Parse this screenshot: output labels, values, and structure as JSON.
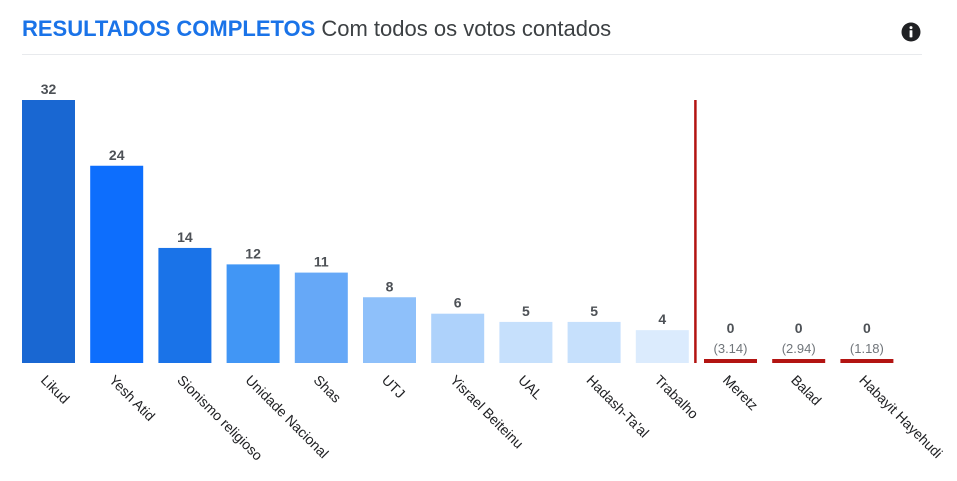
{
  "header": {
    "title": "RESULTADOS COMPLETOS",
    "subtitle": "Com todos os votos contados"
  },
  "icons": {
    "info": "info-icon"
  },
  "colors": {
    "title": "#1a73e8",
    "threshold_line": "#b31412",
    "below_threshold_bar": "#b31412"
  },
  "chart_data": {
    "type": "bar",
    "categories": [
      "Likud",
      "Yesh Atid",
      "Sionismo religioso",
      "Unidade Nacional",
      "Shas",
      "UTJ",
      "Yisrael Beiteinu",
      "UAL",
      "Hadash-Ta'al",
      "Trabalho",
      "Meretz",
      "Balad",
      "Habayit Hayehudi"
    ],
    "values": [
      32,
      24,
      14,
      12,
      11,
      8,
      6,
      5,
      5,
      4,
      0,
      0,
      0
    ],
    "value_labels": [
      "32",
      "24",
      "14",
      "12",
      "11",
      "8",
      "6",
      "5",
      "5",
      "4",
      "0",
      "0",
      "0"
    ],
    "secondary_labels": [
      "",
      "",
      "",
      "",
      "",
      "",
      "",
      "",
      "",
      "",
      "(3.14)",
      "(2.94)",
      "(1.18)"
    ],
    "bar_colors": [
      "#1967d2",
      "#0d6efd",
      "#1a73e8",
      "#4196f5",
      "#66a8f7",
      "#8ec0fa",
      "#aed2fb",
      "#c6e0fc",
      "#c6e0fc",
      "#dbebfd",
      "#b31412",
      "#b31412",
      "#b31412"
    ],
    "threshold_after_index": 9,
    "ylim": [
      0,
      32
    ],
    "title": "",
    "xlabel": "",
    "ylabel": "",
    "grid": false,
    "legend": "none"
  }
}
